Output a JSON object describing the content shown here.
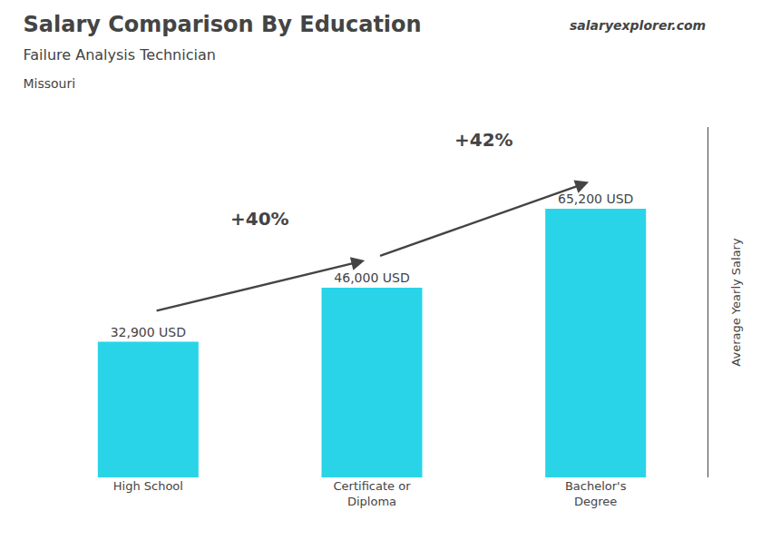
{
  "chart_data": {
    "type": "bar",
    "title": "Salary Comparison By Education",
    "subtitle": [
      "Failure Analysis Technician",
      "Missouri"
    ],
    "categories": [
      "High School",
      "Certificate or\nDiploma",
      "Bachelor's\nDegree"
    ],
    "values": [
      32900,
      46000,
      65200
    ],
    "value_labels": [
      "32,900 USD",
      "46,000 USD",
      "65,200 USD"
    ],
    "color": "#29d4e8",
    "ylabel": "Average Yearly Salary",
    "ylim": [
      0,
      85000
    ],
    "yticks": [],
    "grid": false,
    "tick_labels": "x",
    "data_labels": true,
    "annotations": [
      "+40%",
      "+42%"
    ],
    "source": "salaryexplorer.com"
  }
}
